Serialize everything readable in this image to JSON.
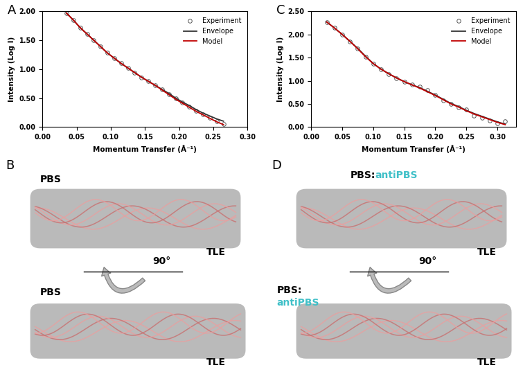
{
  "chart_data": [
    {
      "type": "line",
      "title": "A",
      "xlabel": "Momentum Transfer (Å⁻¹)",
      "ylabel": "Intensity (Log I)",
      "x": [
        0.035,
        0.045,
        0.055,
        0.065,
        0.075,
        0.085,
        0.095,
        0.105,
        0.115,
        0.125,
        0.135,
        0.145,
        0.155,
        0.165,
        0.175,
        0.185,
        0.195,
        0.205,
        0.215,
        0.225,
        0.235,
        0.245,
        0.255,
        0.265
      ],
      "series": [
        {
          "name": "Experiment",
          "color": "#555555",
          "marker": "o",
          "line_style": "none",
          "values": [
            1.97,
            1.85,
            1.72,
            1.61,
            1.5,
            1.39,
            1.28,
            1.19,
            1.1,
            1.02,
            0.94,
            0.86,
            0.79,
            0.72,
            0.65,
            0.57,
            0.49,
            0.42,
            0.35,
            0.28,
            0.22,
            0.16,
            0.1,
            0.05
          ]
        },
        {
          "name": "Envelope",
          "color": "#333333",
          "line_style": "solid",
          "values": [
            1.97,
            1.85,
            1.72,
            1.61,
            1.5,
            1.39,
            1.28,
            1.19,
            1.1,
            1.02,
            0.94,
            0.86,
            0.79,
            0.72,
            0.65,
            0.58,
            0.5,
            0.43,
            0.37,
            0.3,
            0.24,
            0.19,
            0.14,
            0.1
          ]
        },
        {
          "name": "Model",
          "color": "#c00000",
          "line_style": "solid",
          "values": [
            1.97,
            1.85,
            1.72,
            1.61,
            1.5,
            1.39,
            1.28,
            1.19,
            1.1,
            1.02,
            0.94,
            0.86,
            0.79,
            0.72,
            0.64,
            0.56,
            0.48,
            0.41,
            0.34,
            0.27,
            0.21,
            0.15,
            0.09,
            0.04
          ]
        }
      ],
      "xlim": [
        0,
        0.3
      ],
      "xticks": [
        {
          "value": 0,
          "label": "0.00"
        },
        {
          "value": 0.05,
          "label": "0.05"
        },
        {
          "value": 0.1,
          "label": "0.10"
        },
        {
          "value": 0.15,
          "label": "0.15"
        },
        {
          "value": 0.2,
          "label": "0.20"
        },
        {
          "value": 0.25,
          "label": "0.25"
        },
        {
          "value": 0.3,
          "label": "0.30"
        }
      ],
      "ylim": [
        0,
        2
      ],
      "yticks": [
        {
          "value": 0,
          "label": "0.00"
        },
        {
          "value": 0.5,
          "label": "0.50"
        },
        {
          "value": 1,
          "label": "1.00"
        },
        {
          "value": 1.5,
          "label": "1.50"
        },
        {
          "value": 2,
          "label": "2.00"
        }
      ],
      "legend": "upper right"
    },
    {
      "type": "line",
      "title": "C",
      "xlabel": "Momentum Transfer (Å⁻¹)",
      "ylabel": "Intensity (Log I)",
      "x": [
        0.025,
        0.0375,
        0.05,
        0.0625,
        0.075,
        0.0875,
        0.1,
        0.1125,
        0.125,
        0.1375,
        0.15,
        0.1625,
        0.175,
        0.1875,
        0.2,
        0.2125,
        0.225,
        0.2375,
        0.25,
        0.2625,
        0.275,
        0.2875,
        0.3,
        0.3125
      ],
      "series": [
        {
          "name": "Experiment",
          "color": "#555555",
          "marker": "o",
          "line_style": "none",
          "values": [
            2.27,
            2.14,
            2.0,
            1.85,
            1.7,
            1.52,
            1.36,
            1.24,
            1.15,
            1.06,
            0.98,
            0.92,
            0.87,
            0.8,
            0.7,
            0.58,
            0.5,
            0.42,
            0.38,
            0.25,
            0.2,
            0.14,
            0.08,
            0.12
          ]
        },
        {
          "name": "Envelope",
          "color": "#333333",
          "line_style": "solid",
          "values": [
            2.27,
            2.14,
            2.0,
            1.85,
            1.7,
            1.53,
            1.37,
            1.25,
            1.15,
            1.06,
            0.98,
            0.91,
            0.85,
            0.77,
            0.69,
            0.6,
            0.51,
            0.44,
            0.36,
            0.29,
            0.23,
            0.17,
            0.11,
            0.06
          ]
        },
        {
          "name": "Model",
          "color": "#c00000",
          "line_style": "solid",
          "values": [
            2.27,
            2.14,
            2.0,
            1.85,
            1.69,
            1.52,
            1.37,
            1.25,
            1.15,
            1.06,
            0.98,
            0.91,
            0.84,
            0.76,
            0.68,
            0.59,
            0.5,
            0.43,
            0.35,
            0.28,
            0.22,
            0.16,
            0.1,
            0.05
          ]
        }
      ],
      "xlim": [
        0,
        0.33
      ],
      "xticks": [
        {
          "value": 0,
          "label": "0.00"
        },
        {
          "value": 0.05,
          "label": "0.05"
        },
        {
          "value": 0.1,
          "label": "0.10"
        },
        {
          "value": 0.15,
          "label": "0.15"
        },
        {
          "value": 0.2,
          "label": "0.20"
        },
        {
          "value": 0.25,
          "label": "0.25"
        },
        {
          "value": 0.3,
          "label": "0.30"
        }
      ],
      "ylim": [
        0,
        2.5
      ],
      "yticks": [
        {
          "value": 0,
          "label": "0.00"
        },
        {
          "value": 0.5,
          "label": "0.50"
        },
        {
          "value": 1,
          "label": "1.00"
        },
        {
          "value": 1.5,
          "label": "1.50"
        },
        {
          "value": 2,
          "label": "2.00"
        },
        {
          "value": 2.5,
          "label": "2.50"
        }
      ],
      "legend": "upper right"
    }
  ],
  "structures": [
    {
      "panel": "B",
      "rotation": "90°",
      "top": {
        "labels": [
          [
            {
              "text": "PBS",
              "color": "#000000"
            }
          ],
          [
            {
              "text": "TLE",
              "color": "#000000"
            }
          ]
        ]
      },
      "bottom": {
        "labels": [
          [
            {
              "text": "PBS",
              "color": "#000000"
            }
          ],
          [
            {
              "text": "TLE",
              "color": "#000000"
            }
          ]
        ]
      }
    },
    {
      "panel": "D",
      "rotation": "90°",
      "top": {
        "labels": [
          [
            {
              "text": "PBS:",
              "color": "#000000"
            },
            {
              "text": "antiPBS",
              "color": "#40c0c8"
            }
          ],
          [
            {
              "text": "TLE",
              "color": "#000000"
            }
          ]
        ]
      },
      "bottom": {
        "labels": [
          [
            {
              "text": "PBS:",
              "color": "#000000"
            }
          ],
          [
            {
              "text": "antiPBS",
              "color": "#40c0c8"
            }
          ],
          [
            {
              "text": "TLE",
              "color": "#000000"
            }
          ]
        ]
      }
    }
  ]
}
